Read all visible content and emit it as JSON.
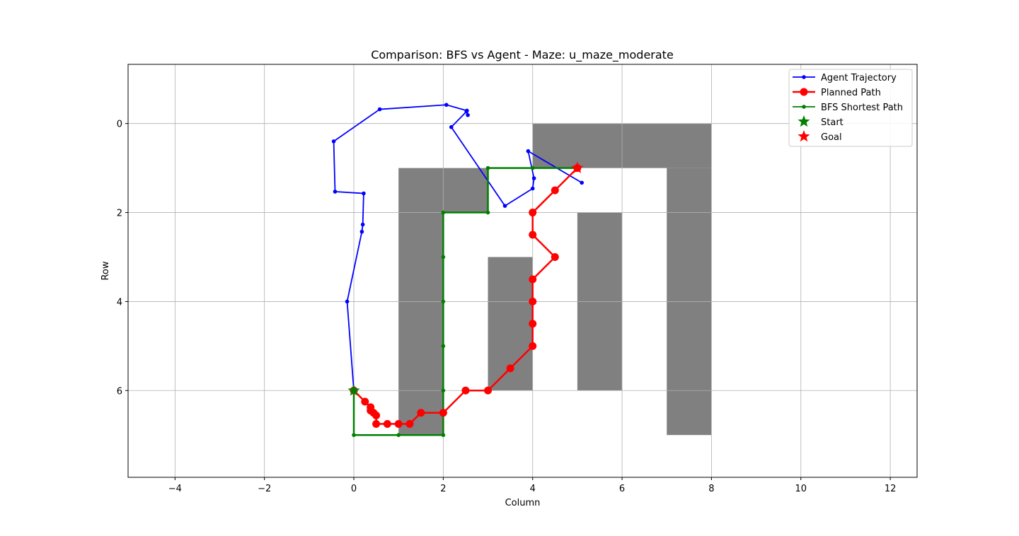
{
  "chart_data": {
    "type": "line",
    "title": "Comparison: BFS vs Agent - Maze: u_maze_moderate",
    "xlabel": "Column",
    "ylabel": "Row",
    "xlim": [
      -5.05,
      12.6
    ],
    "ylim": [
      7.95,
      -1.33
    ],
    "y_inverted": true,
    "grid": true,
    "legend_position": "upper right",
    "x_ticks": [
      -4,
      -2,
      0,
      2,
      4,
      6,
      8,
      10,
      12
    ],
    "y_ticks": [
      0,
      2,
      4,
      6
    ],
    "walls_color": "#808080",
    "walls": [
      {
        "x": [
          4,
          8
        ],
        "y": [
          0,
          1
        ]
      },
      {
        "x": [
          7,
          8
        ],
        "y": [
          1,
          7
        ]
      },
      {
        "x": [
          1,
          2
        ],
        "y": [
          1,
          7
        ]
      },
      {
        "x": [
          2,
          3
        ],
        "y": [
          1,
          2
        ]
      },
      {
        "x": [
          3,
          4
        ],
        "y": [
          3,
          6
        ]
      },
      {
        "x": [
          5,
          6
        ],
        "y": [
          2,
          6
        ]
      }
    ],
    "series": [
      {
        "name": "Agent Trajectory",
        "color": "#0000ff",
        "marker": "dot",
        "points": [
          [
            0.0,
            6.0
          ],
          [
            -0.15,
            4.0
          ],
          [
            0.18,
            2.43
          ],
          [
            0.2,
            2.27
          ],
          [
            0.22,
            1.57
          ],
          [
            -0.42,
            1.53
          ],
          [
            -0.45,
            0.4
          ],
          [
            0.58,
            -0.32
          ],
          [
            2.07,
            -0.42
          ],
          [
            2.53,
            -0.29
          ],
          [
            2.55,
            -0.19
          ],
          [
            2.52,
            -0.27
          ],
          [
            2.18,
            0.08
          ],
          [
            3.38,
            1.85
          ],
          [
            4.0,
            1.46
          ],
          [
            4.03,
            1.23
          ],
          [
            3.9,
            0.62
          ],
          [
            5.1,
            1.33
          ]
        ]
      },
      {
        "name": "Planned Path",
        "color": "#ff0000",
        "marker": "circle",
        "points": [
          [
            0.0,
            6.0
          ],
          [
            0.25,
            6.25
          ],
          [
            0.375,
            6.375
          ],
          [
            0.375,
            6.45
          ],
          [
            0.44,
            6.5
          ],
          [
            0.5,
            6.56
          ],
          [
            0.5,
            6.75
          ],
          [
            0.75,
            6.75
          ],
          [
            1.0,
            6.75
          ],
          [
            1.25,
            6.75
          ],
          [
            1.5,
            6.5
          ],
          [
            2.0,
            6.5
          ],
          [
            2.5,
            6.0
          ],
          [
            3.0,
            6.0
          ],
          [
            3.5,
            5.5
          ],
          [
            4.0,
            5.0
          ],
          [
            4.0,
            4.5
          ],
          [
            4.0,
            4.0
          ],
          [
            4.0,
            3.5
          ],
          [
            4.5,
            3.0
          ],
          [
            4.0,
            2.5
          ],
          [
            4.0,
            2.0
          ],
          [
            4.5,
            1.5
          ],
          [
            5.0,
            1.0
          ]
        ]
      },
      {
        "name": "BFS Shortest Path",
        "color": "#008000",
        "marker": "dot",
        "points": [
          [
            0,
            6
          ],
          [
            0,
            7
          ],
          [
            1,
            7
          ],
          [
            2,
            7
          ],
          [
            2,
            6
          ],
          [
            2,
            5
          ],
          [
            2,
            4
          ],
          [
            2,
            3
          ],
          [
            2,
            2
          ],
          [
            3,
            2
          ],
          [
            3,
            1
          ],
          [
            4,
            1
          ],
          [
            5,
            1
          ]
        ]
      }
    ],
    "start": {
      "name": "Start",
      "point": [
        0,
        6
      ],
      "color": "#008000",
      "marker": "star"
    },
    "goal": {
      "name": "Goal",
      "point": [
        5,
        1
      ],
      "color": "#ff0000",
      "marker": "star"
    },
    "legend": [
      "Agent Trajectory",
      "Planned Path",
      "BFS Shortest Path",
      "Start",
      "Goal"
    ]
  }
}
